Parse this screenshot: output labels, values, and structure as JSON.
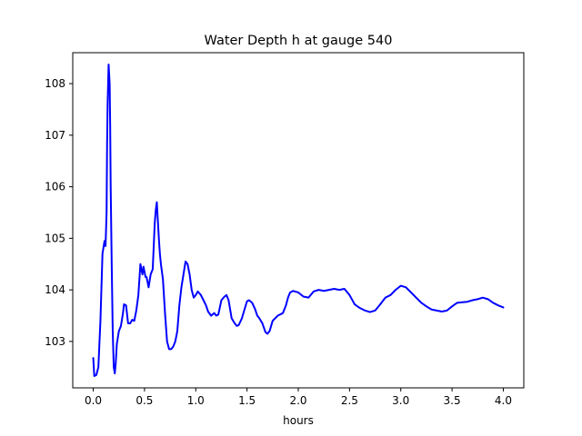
{
  "chart_data": {
    "type": "line",
    "title": "Water Depth h at gauge 540",
    "xlabel": "hours",
    "ylabel": "",
    "xlim": [
      -0.2,
      4.2
    ],
    "ylim": [
      102.1,
      108.6
    ],
    "xticks": [
      0.0,
      0.5,
      1.0,
      1.5,
      2.0,
      2.5,
      3.0,
      3.5,
      4.0
    ],
    "xtick_labels": [
      "0.0",
      "0.5",
      "1.0",
      "1.5",
      "2.0",
      "2.5",
      "3.0",
      "3.5",
      "4.0"
    ],
    "yticks": [
      103,
      104,
      105,
      106,
      107,
      108
    ],
    "ytick_labels": [
      "103",
      "104",
      "105",
      "106",
      "107",
      "108"
    ],
    "grid": false,
    "series": [
      {
        "color": "#0000ff",
        "x": [
          0.0,
          0.01,
          0.03,
          0.05,
          0.07,
          0.09,
          0.11,
          0.12,
          0.13,
          0.135,
          0.14,
          0.15,
          0.16,
          0.165,
          0.17,
          0.18,
          0.19,
          0.2,
          0.21,
          0.22,
          0.23,
          0.25,
          0.27,
          0.29,
          0.3,
          0.32,
          0.34,
          0.36,
          0.38,
          0.4,
          0.42,
          0.44,
          0.46,
          0.48,
          0.49,
          0.5,
          0.51,
          0.52,
          0.54,
          0.56,
          0.58,
          0.6,
          0.61,
          0.62,
          0.63,
          0.64,
          0.65,
          0.66,
          0.68,
          0.7,
          0.72,
          0.74,
          0.76,
          0.78,
          0.8,
          0.82,
          0.84,
          0.86,
          0.88,
          0.9,
          0.92,
          0.94,
          0.96,
          0.98,
          1.0,
          1.02,
          1.05,
          1.08,
          1.1,
          1.12,
          1.15,
          1.18,
          1.2,
          1.22,
          1.25,
          1.28,
          1.3,
          1.32,
          1.35,
          1.38,
          1.4,
          1.42,
          1.45,
          1.48,
          1.5,
          1.52,
          1.55,
          1.58,
          1.6,
          1.62,
          1.65,
          1.68,
          1.7,
          1.72,
          1.75,
          1.8,
          1.85,
          1.88,
          1.9,
          1.92,
          1.95,
          2.0,
          2.05,
          2.1,
          2.15,
          2.2,
          2.25,
          2.3,
          2.35,
          2.4,
          2.45,
          2.5,
          2.55,
          2.6,
          2.65,
          2.7,
          2.75,
          2.8,
          2.85,
          2.9,
          2.95,
          3.0,
          3.05,
          3.1,
          3.15,
          3.2,
          3.25,
          3.3,
          3.35,
          3.4,
          3.45,
          3.5,
          3.55,
          3.6,
          3.65,
          3.7,
          3.75,
          3.8,
          3.85,
          3.9,
          3.95,
          4.0
        ],
        "y": [
          102.68,
          102.33,
          102.35,
          102.5,
          103.4,
          104.7,
          104.95,
          104.85,
          105.5,
          106.8,
          107.6,
          108.37,
          108.0,
          107.2,
          106.0,
          104.5,
          103.2,
          102.5,
          102.38,
          102.6,
          102.95,
          103.2,
          103.3,
          103.55,
          103.72,
          103.7,
          103.35,
          103.35,
          103.42,
          103.4,
          103.6,
          103.9,
          104.5,
          104.3,
          104.45,
          104.35,
          104.25,
          104.25,
          104.05,
          104.3,
          104.4,
          105.3,
          105.55,
          105.7,
          105.35,
          105.0,
          104.7,
          104.5,
          104.2,
          103.55,
          103.0,
          102.85,
          102.85,
          102.9,
          103.0,
          103.2,
          103.7,
          104.05,
          104.3,
          104.55,
          104.5,
          104.3,
          104.0,
          103.85,
          103.9,
          103.97,
          103.9,
          103.78,
          103.7,
          103.58,
          103.5,
          103.55,
          103.5,
          103.52,
          103.8,
          103.87,
          103.9,
          103.8,
          103.45,
          103.35,
          103.3,
          103.32,
          103.45,
          103.65,
          103.78,
          103.8,
          103.75,
          103.62,
          103.5,
          103.45,
          103.35,
          103.18,
          103.15,
          103.2,
          103.4,
          103.5,
          103.55,
          103.7,
          103.85,
          103.95,
          103.98,
          103.95,
          103.87,
          103.85,
          103.97,
          104.0,
          103.98,
          104.0,
          104.02,
          104.0,
          104.02,
          103.9,
          103.72,
          103.65,
          103.6,
          103.57,
          103.6,
          103.72,
          103.85,
          103.9,
          104.0,
          104.08,
          104.05,
          103.95,
          103.85,
          103.75,
          103.68,
          103.62,
          103.6,
          103.58,
          103.6,
          103.68,
          103.75,
          103.76,
          103.77,
          103.8,
          103.82,
          103.85,
          103.82,
          103.75,
          103.7,
          103.66
        ]
      }
    ]
  }
}
